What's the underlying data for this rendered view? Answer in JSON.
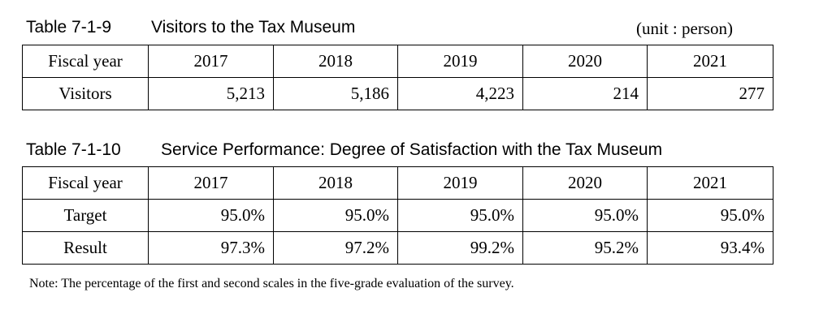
{
  "table1": {
    "label": "Table 7-1-9",
    "title": "Visitors to the Tax Museum",
    "unit": "(unit : person)",
    "header": [
      "Fiscal year",
      "2017",
      "2018",
      "2019",
      "2020",
      "2021"
    ],
    "rows": [
      [
        "Visitors",
        "5,213",
        "5,186",
        "4,223",
        "214",
        "277"
      ]
    ]
  },
  "table2": {
    "label": "Table 7-1-10",
    "title": "Service Performance: Degree of Satisfaction with the Tax Museum",
    "header": [
      "Fiscal year",
      "2017",
      "2018",
      "2019",
      "2020",
      "2021"
    ],
    "rows": [
      [
        "Target",
        "95.0%",
        "95.0%",
        "95.0%",
        "95.0%",
        "95.0%"
      ],
      [
        "Result",
        "97.3%",
        "97.2%",
        "99.2%",
        "95.2%",
        "93.4%"
      ]
    ]
  },
  "note": "Note: The percentage of the first and second scales in the five-grade evaluation of the survey."
}
